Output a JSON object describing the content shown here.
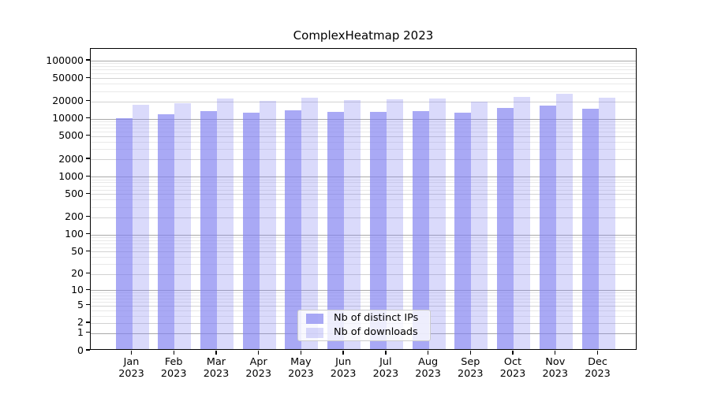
{
  "title": "ComplexHeatmap 2023",
  "legend": {
    "items": [
      {
        "label": "Nb of distinct IPs",
        "color": "rgba(127,127,240,0.67)"
      },
      {
        "label": "Nb of downloads",
        "color": "rgba(127,127,240,0.29)"
      }
    ]
  },
  "axis": {
    "ytick_labels": [
      "0",
      "1",
      "2",
      "5",
      "10",
      "20",
      "50",
      "100",
      "200",
      "500",
      "1000",
      "2000",
      "5000",
      "10000",
      "20000",
      "50000",
      "100000"
    ]
  },
  "colors": {
    "bar_distinct_ips": "rgba(127,127,240,0.67)",
    "bar_downloads": "rgba(127,127,240,0.29)",
    "grid_major": "#a9a9a9",
    "grid_mid": "#d2d2d2",
    "grid_minor": "#e9e9e9",
    "spine": "#000000"
  },
  "chart_data": {
    "type": "bar",
    "title": "ComplexHeatmap 2023",
    "categories": [
      "Jan 2023",
      "Feb 2023",
      "Mar 2023",
      "Apr 2023",
      "May 2023",
      "Jun 2023",
      "Jul 2023",
      "Aug 2023",
      "Sep 2023",
      "Oct 2023",
      "Nov 2023",
      "Dec 2023"
    ],
    "series": [
      {
        "name": "Nb of distinct IPs",
        "values": [
          9500,
          11100,
          12700,
          11800,
          13100,
          12400,
          12400,
          12800,
          12100,
          14600,
          16000,
          13900
        ]
      },
      {
        "name": "Nb of downloads",
        "values": [
          16300,
          17600,
          21200,
          19200,
          21900,
          19400,
          20300,
          20700,
          18700,
          22300,
          25600,
          21800
        ]
      }
    ],
    "xlabel": "",
    "ylabel": "",
    "yscale": "log1p",
    "yticks": [
      0,
      1,
      2,
      5,
      10,
      20,
      50,
      100,
      200,
      500,
      1000,
      2000,
      5000,
      10000,
      20000,
      50000,
      100000
    ],
    "ylim": [
      0,
      160000
    ],
    "grid": true,
    "legend_position": "lower center"
  }
}
